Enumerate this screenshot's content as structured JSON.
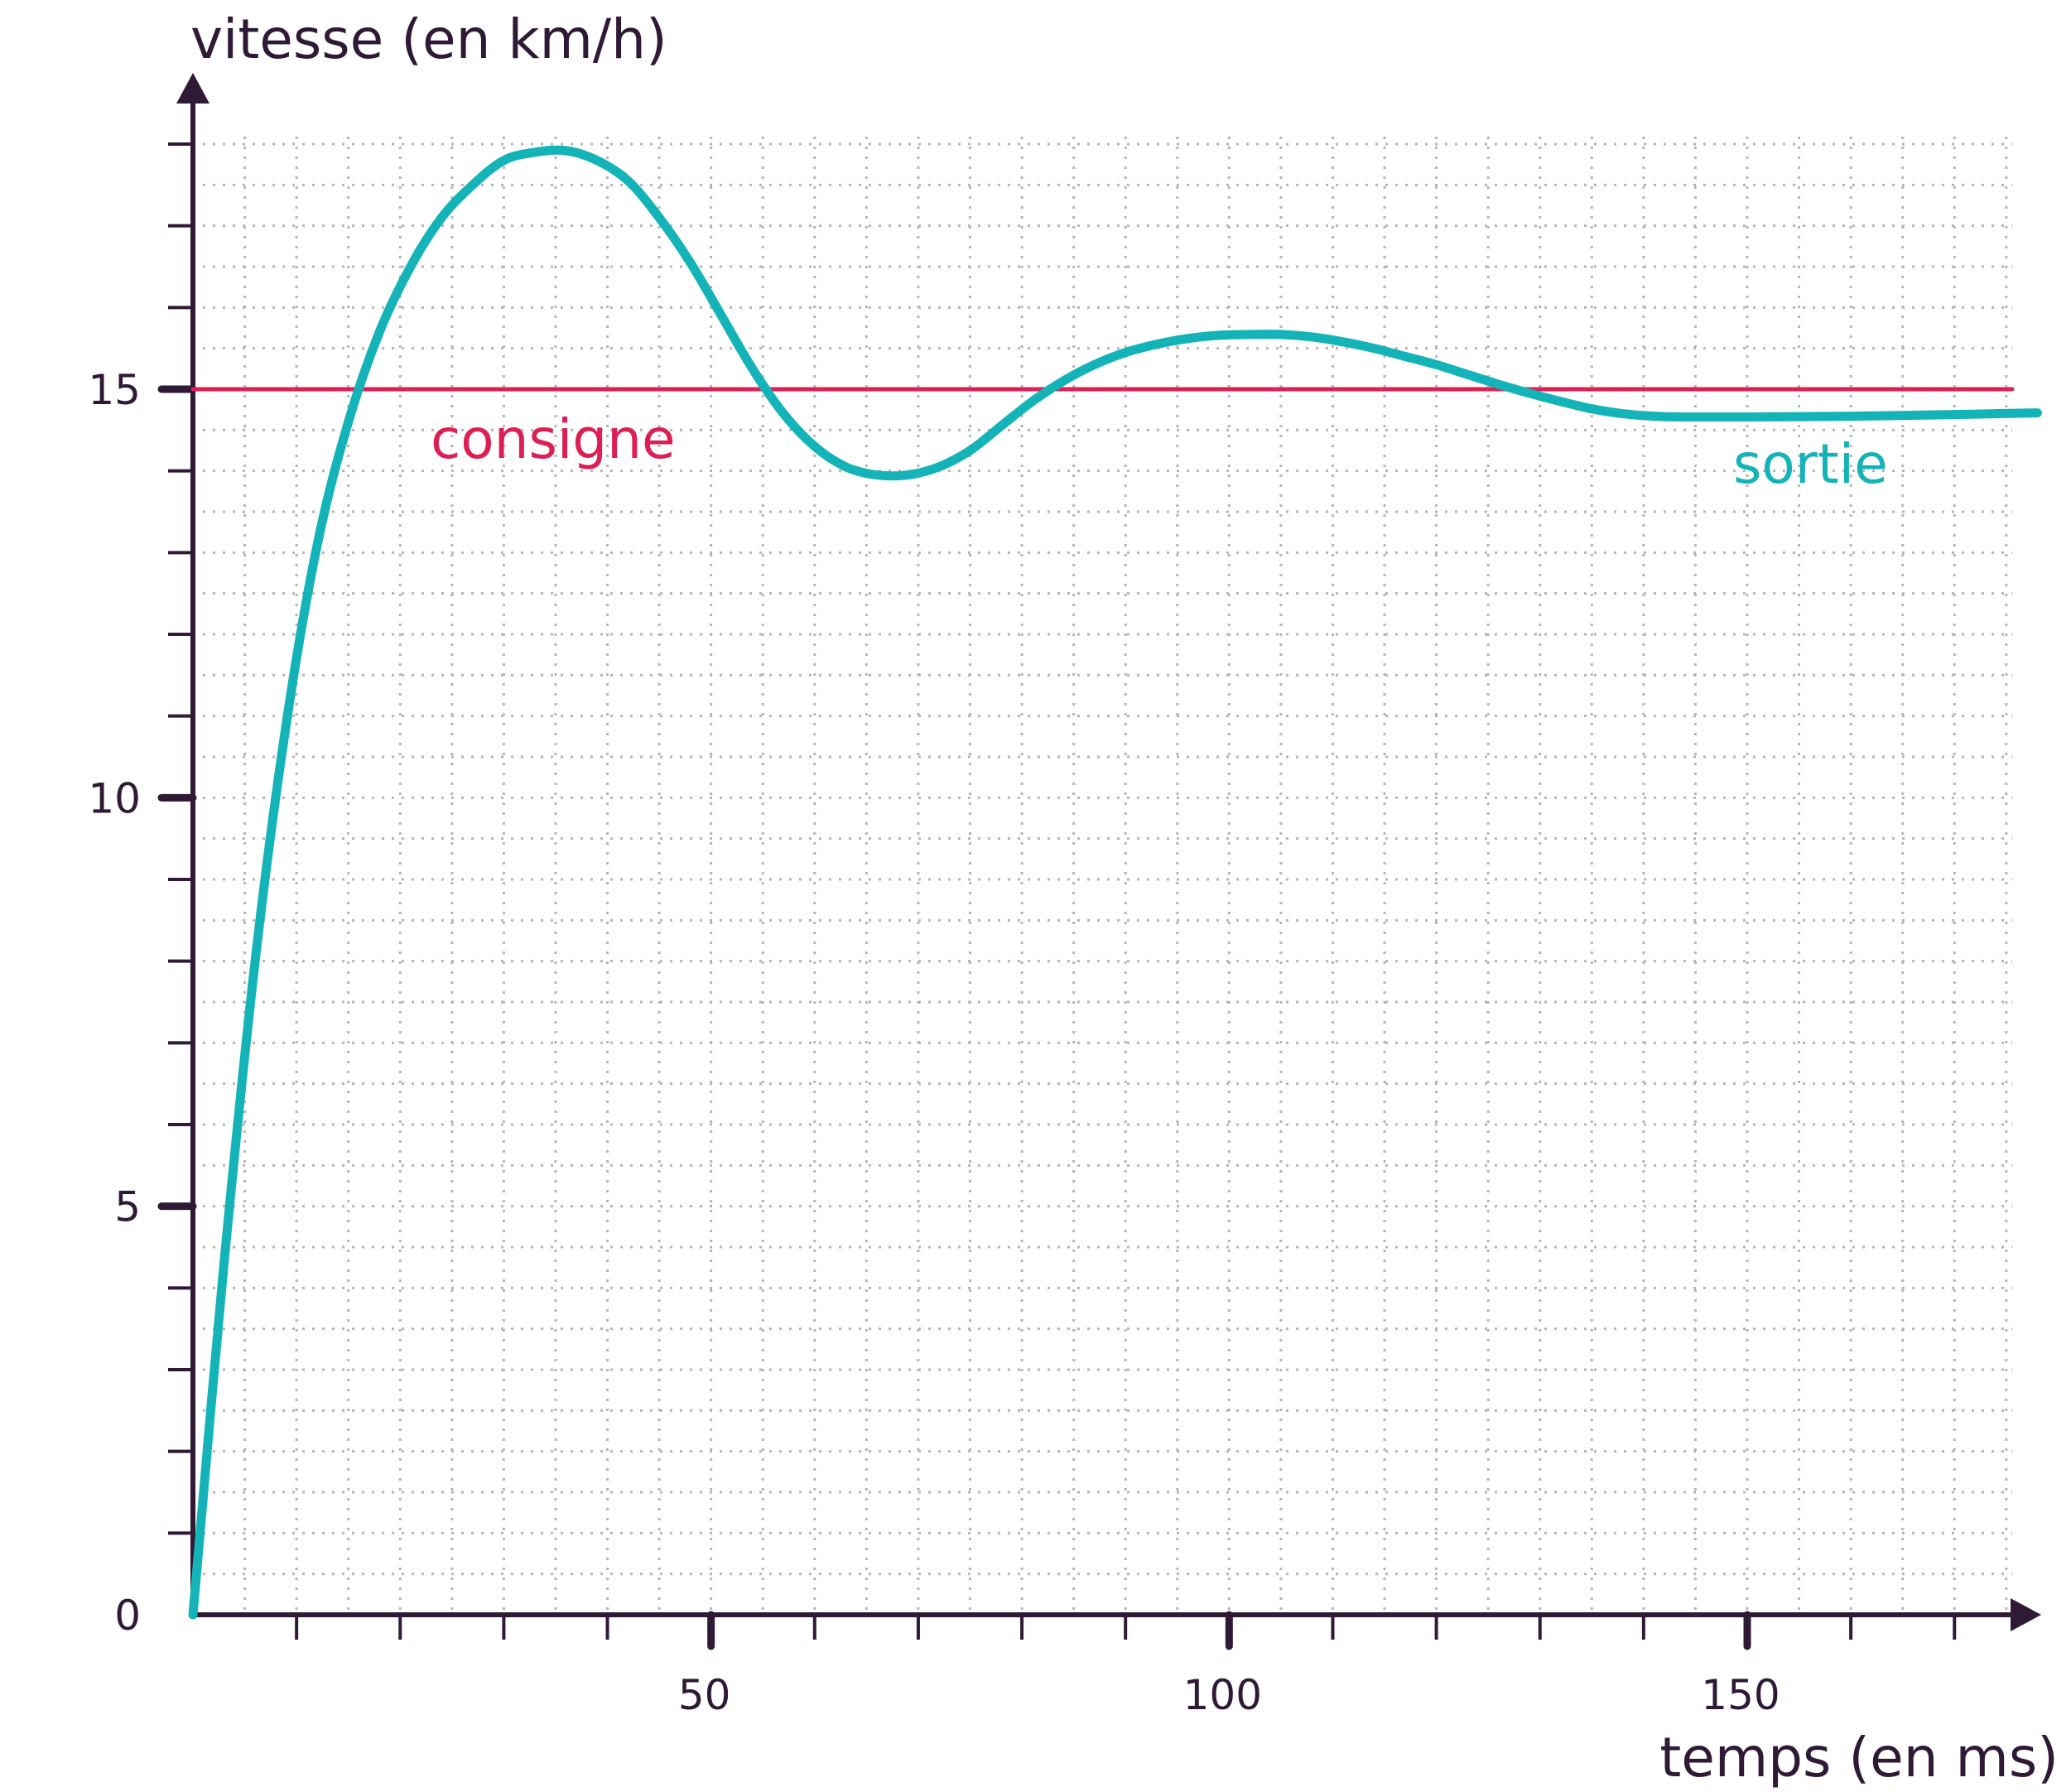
{
  "chart_data": {
    "type": "line",
    "xlabel": "temps (en ms)",
    "ylabel": "vitesse (en km/h)",
    "xlim": [
      0,
      180
    ],
    "ylim": [
      0,
      18.5
    ],
    "x_ticks": [
      50,
      100,
      150
    ],
    "y_ticks": [
      0,
      5,
      10,
      15
    ],
    "x_minor_step": 10,
    "y_minor_step": 1,
    "grid": true,
    "colors": {
      "axes": "#2f1a35",
      "consigne": "#dc2055",
      "sortie": "#14b3b8",
      "grid": "#b5b5b5"
    },
    "series": [
      {
        "name": "consigne",
        "color": "#dc2055",
        "x": [
          0,
          180
        ],
        "y": [
          15,
          15
        ]
      },
      {
        "name": "sortie",
        "color": "#14b3b8",
        "x": [
          0,
          3,
          6,
          9,
          12,
          15,
          18,
          21,
          24,
          27,
          30,
          33,
          36,
          39,
          42,
          45,
          48,
          51,
          54,
          57,
          60,
          63,
          66,
          69,
          72,
          75,
          78,
          81,
          84,
          87,
          90,
          93,
          96,
          99,
          102,
          105,
          108,
          111,
          114,
          117,
          120,
          123,
          126,
          129,
          132,
          135,
          138,
          141,
          144,
          150,
          160,
          170,
          178
        ],
        "y": [
          0,
          4.3,
          8.0,
          10.9,
          13.1,
          14.6,
          15.7,
          16.5,
          17.1,
          17.5,
          17.8,
          17.9,
          17.92,
          17.8,
          17.55,
          17.1,
          16.55,
          15.9,
          15.25,
          14.7,
          14.3,
          14.05,
          13.95,
          13.95,
          14.05,
          14.25,
          14.55,
          14.85,
          15.1,
          15.3,
          15.45,
          15.55,
          15.62,
          15.66,
          15.67,
          15.67,
          15.64,
          15.58,
          15.5,
          15.4,
          15.3,
          15.18,
          15.06,
          14.95,
          14.85,
          14.76,
          14.7,
          14.67,
          14.66,
          14.66,
          14.67,
          14.69,
          14.71
        ]
      }
    ]
  }
}
